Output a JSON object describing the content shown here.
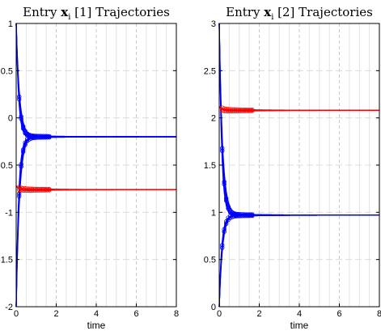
{
  "chart_data": [
    {
      "type": "line",
      "title_parts": {
        "prefix": "Entry ",
        "symbol": "x",
        "subscript": "i",
        "suffix": " [1] Trajectories"
      },
      "xlabel": "time",
      "ylabel": "",
      "xlim": [
        0,
        8
      ],
      "ylim": [
        -2,
        1
      ],
      "xticks": [
        "0",
        "2",
        "4",
        "6",
        "8"
      ],
      "yticks": [
        "-2",
        "-1.5",
        "-1",
        "-0.5",
        "0",
        "0.5",
        "1"
      ],
      "grid": true,
      "series": [
        {
          "color": "#0000ff",
          "start": 1.0,
          "final": -0.2,
          "marker": "circle"
        },
        {
          "color": "#0000ff",
          "start": -2.0,
          "final": -0.2,
          "marker": "circle"
        },
        {
          "color": "#ff0000",
          "start": -0.72,
          "final": -0.76,
          "marker": "circle"
        }
      ]
    },
    {
      "type": "line",
      "title_parts": {
        "prefix": "Entry ",
        "symbol": "x",
        "subscript": "i",
        "suffix": " [2] Trajectories"
      },
      "xlabel": "time",
      "ylabel": "",
      "xlim": [
        0,
        8
      ],
      "ylim": [
        0,
        3
      ],
      "xticks": [
        "0",
        "2",
        "4",
        "6",
        "8"
      ],
      "yticks": [
        "0",
        "0.5",
        "1",
        "1.5",
        "2",
        "2.5",
        "3"
      ],
      "grid": true,
      "series": [
        {
          "color": "#0000ff",
          "start": 3.0,
          "final": 0.97,
          "marker": "circle"
        },
        {
          "color": "#0000ff",
          "start": 0.0,
          "final": 0.97,
          "marker": "circle"
        },
        {
          "color": "#ff0000",
          "start": 2.12,
          "final": 2.08,
          "marker": "circle"
        }
      ]
    }
  ]
}
